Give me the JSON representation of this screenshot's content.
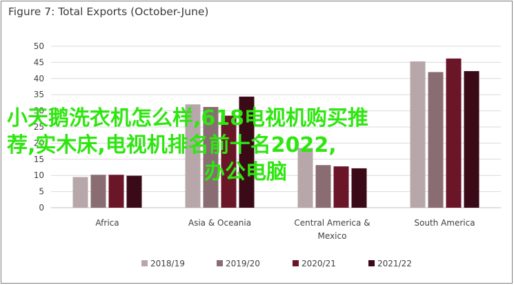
{
  "chart_data": {
    "type": "bar",
    "title": "Figure 7: Total Exports (October-June)",
    "xlabel": "",
    "ylabel": "",
    "ylim": [
      0,
      50
    ],
    "yticks": [
      0,
      5,
      10,
      15,
      20,
      25,
      30,
      35,
      40,
      45,
      50
    ],
    "grid": true,
    "legend_position": "bottom",
    "categories": [
      "Africa",
      "Asia & Oceania",
      "Central America &\nMexico",
      "South America"
    ],
    "category_lines": [
      [
        "Africa"
      ],
      [
        "Asia & Oceania"
      ],
      [
        "Central America &",
        "Mexico"
      ],
      [
        "South America"
      ]
    ],
    "series": [
      {
        "name": "2018/19",
        "color": "#b7a7aa",
        "values": [
          9.5,
          32,
          18.5,
          45.3
        ]
      },
      {
        "name": "2019/20",
        "color": "#8a6d72",
        "values": [
          10.2,
          31.2,
          13.2,
          42
        ]
      },
      {
        "name": "2020/21",
        "color": "#6b1528",
        "values": [
          10.2,
          28.5,
          12.8,
          46.2
        ]
      },
      {
        "name": "2021/22",
        "color": "#3a0a16",
        "values": [
          9.9,
          34.4,
          12.2,
          42.3
        ]
      }
    ]
  },
  "overlay": {
    "line1": "小天鹅洗衣机怎么样,618电视机购买推",
    "line2": "荐,实木床,电视机排名前十名2022,",
    "line3": "办公电脑",
    "color": "#2ee60f"
  }
}
